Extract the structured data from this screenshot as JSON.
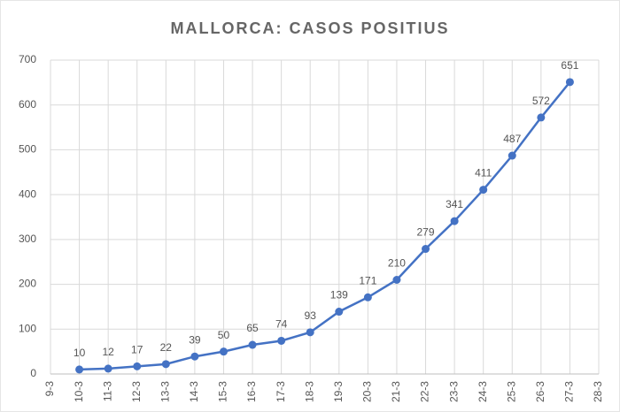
{
  "chart_data": {
    "type": "line",
    "title": "MALLORCA: CASOS POSITIUS",
    "categories": [
      "9-3",
      "10-3",
      "11-3",
      "12-3",
      "13-3",
      "14-3",
      "15-3",
      "16-3",
      "17-3",
      "18-3",
      "19-3",
      "20-3",
      "21-3",
      "22-3",
      "23-3",
      "24-3",
      "25-3",
      "26-3",
      "27-3",
      "28-3"
    ],
    "series": [
      {
        "name": "Casos positius",
        "color": "#4472c4",
        "values": [
          null,
          10,
          12,
          17,
          22,
          39,
          50,
          65,
          74,
          93,
          139,
          171,
          210,
          279,
          341,
          411,
          487,
          572,
          651,
          null
        ]
      }
    ],
    "ylim": [
      0,
      700
    ],
    "yticks": [
      0,
      100,
      200,
      300,
      400,
      500,
      600,
      700
    ],
    "grid": true,
    "legend": false
  }
}
